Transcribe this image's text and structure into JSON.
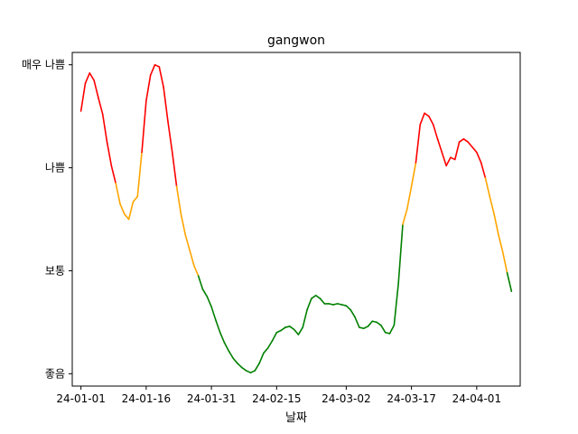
{
  "chart_data": {
    "type": "line",
    "title": "gangwon",
    "xlabel": "날짜",
    "ylabel": "",
    "x_ticks": [
      "24-01-01",
      "24-01-16",
      "24-01-31",
      "24-02-15",
      "24-03-02",
      "24-03-17",
      "24-04-01"
    ],
    "y_ticks": [
      {
        "value": 0,
        "label": "좋음"
      },
      {
        "value": 1,
        "label": "보통"
      },
      {
        "value": 2,
        "label": "나쁨"
      },
      {
        "value": 3,
        "label": "매우 나쁨"
      }
    ],
    "ylim": [
      -0.12,
      3.12
    ],
    "xlim": [
      "2023-12-30",
      "2024-04-11"
    ],
    "grid": false,
    "colors": {
      "좋음": "#008000",
      "보통": "#ffa500",
      "나쁨": "#ff0000"
    },
    "dates": [
      "2024-01-01",
      "2024-01-02",
      "2024-01-03",
      "2024-01-04",
      "2024-01-05",
      "2024-01-06",
      "2024-01-07",
      "2024-01-08",
      "2024-01-09",
      "2024-01-10",
      "2024-01-11",
      "2024-01-12",
      "2024-01-13",
      "2024-01-14",
      "2024-01-15",
      "2024-01-16",
      "2024-01-17",
      "2024-01-18",
      "2024-01-19",
      "2024-01-20",
      "2024-01-21",
      "2024-01-22",
      "2024-01-23",
      "2024-01-24",
      "2024-01-25",
      "2024-01-26",
      "2024-01-27",
      "2024-01-28",
      "2024-01-29",
      "2024-01-30",
      "2024-01-31",
      "2024-02-01",
      "2024-02-02",
      "2024-02-03",
      "2024-02-04",
      "2024-02-05",
      "2024-02-06",
      "2024-02-07",
      "2024-02-08",
      "2024-02-09",
      "2024-02-10",
      "2024-02-11",
      "2024-02-12",
      "2024-02-13",
      "2024-02-14",
      "2024-02-15",
      "2024-02-16",
      "2024-02-17",
      "2024-02-18",
      "2024-02-19",
      "2024-02-20",
      "2024-02-21",
      "2024-02-22",
      "2024-02-23",
      "2024-02-24",
      "2024-02-25",
      "2024-02-26",
      "2024-02-27",
      "2024-02-28",
      "2024-02-29",
      "2024-03-01",
      "2024-03-02",
      "2024-03-03",
      "2024-03-04",
      "2024-03-05",
      "2024-03-06",
      "2024-03-07",
      "2024-03-08",
      "2024-03-09",
      "2024-03-10",
      "2024-03-11",
      "2024-03-12",
      "2024-03-13",
      "2024-03-14",
      "2024-03-15",
      "2024-03-16",
      "2024-03-17",
      "2024-03-18",
      "2024-03-19",
      "2024-03-20",
      "2024-03-21",
      "2024-03-22",
      "2024-03-23",
      "2024-03-24",
      "2024-03-25",
      "2024-03-26",
      "2024-03-27",
      "2024-03-28",
      "2024-03-29",
      "2024-03-30",
      "2024-03-31",
      "2024-04-01",
      "2024-04-02",
      "2024-04-03",
      "2024-04-04",
      "2024-04-05",
      "2024-04-06",
      "2024-04-07",
      "2024-04-08",
      "2024-04-09"
    ],
    "values": [
      2.55,
      2.82,
      2.92,
      2.85,
      2.68,
      2.52,
      2.25,
      2.02,
      1.85,
      1.65,
      1.55,
      1.5,
      1.67,
      1.72,
      2.15,
      2.65,
      2.9,
      3.0,
      2.98,
      2.78,
      2.45,
      2.15,
      1.82,
      1.55,
      1.35,
      1.2,
      1.05,
      0.95,
      0.82,
      0.75,
      0.65,
      0.52,
      0.4,
      0.3,
      0.22,
      0.15,
      0.1,
      0.06,
      0.03,
      0.01,
      0.03,
      0.1,
      0.2,
      0.25,
      0.32,
      0.4,
      0.42,
      0.45,
      0.46,
      0.43,
      0.38,
      0.45,
      0.62,
      0.73,
      0.76,
      0.73,
      0.68,
      0.68,
      0.67,
      0.68,
      0.67,
      0.66,
      0.62,
      0.55,
      0.45,
      0.44,
      0.46,
      0.51,
      0.5,
      0.47,
      0.4,
      0.39,
      0.47,
      0.88,
      1.45,
      1.6,
      1.82,
      2.05,
      2.42,
      2.53,
      2.5,
      2.42,
      2.28,
      2.15,
      2.02,
      2.1,
      2.08,
      2.25,
      2.28,
      2.25,
      2.2,
      2.15,
      2.05,
      1.9,
      1.72,
      1.55,
      1.35,
      1.18,
      0.98,
      0.8
    ]
  }
}
